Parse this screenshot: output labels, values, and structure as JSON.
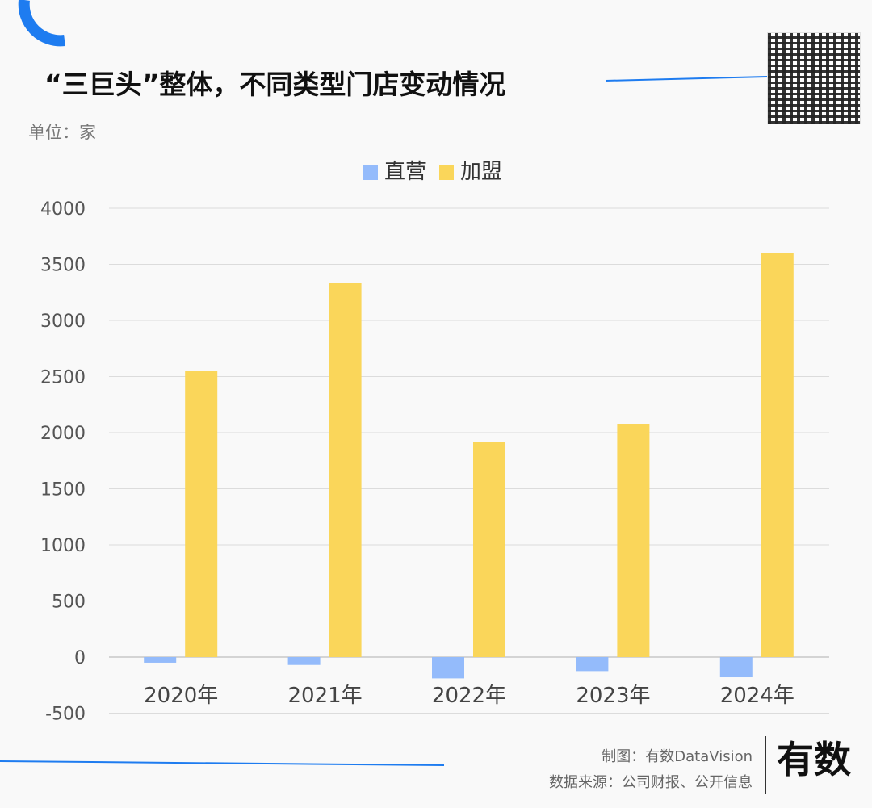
{
  "title": "“三巨头”整体，不同类型门店变动情况",
  "unit": "单位：家",
  "credits": {
    "made_by": "制图：有数DataVision",
    "source": "数据来源：公司财报、公开信息"
  },
  "logo_text": "有数 Data Vision",
  "chart_data": {
    "type": "bar",
    "categories": [
      "2020年",
      "2021年",
      "2022年",
      "2023年",
      "2024年"
    ],
    "series": [
      {
        "name": "直营",
        "color": "#94bbfb",
        "values": [
          -50,
          -70,
          -190,
          -125,
          -180
        ]
      },
      {
        "name": "加盟",
        "color": "#fad65a",
        "values": [
          2554,
          3338,
          1914,
          2079,
          3604
        ]
      }
    ],
    "ylim": [
      -500,
      4000
    ],
    "yticks": [
      4000,
      3500,
      3000,
      2500,
      2000,
      1500,
      1000,
      500,
      0,
      -500
    ],
    "grid": true,
    "legend": "top-center"
  }
}
